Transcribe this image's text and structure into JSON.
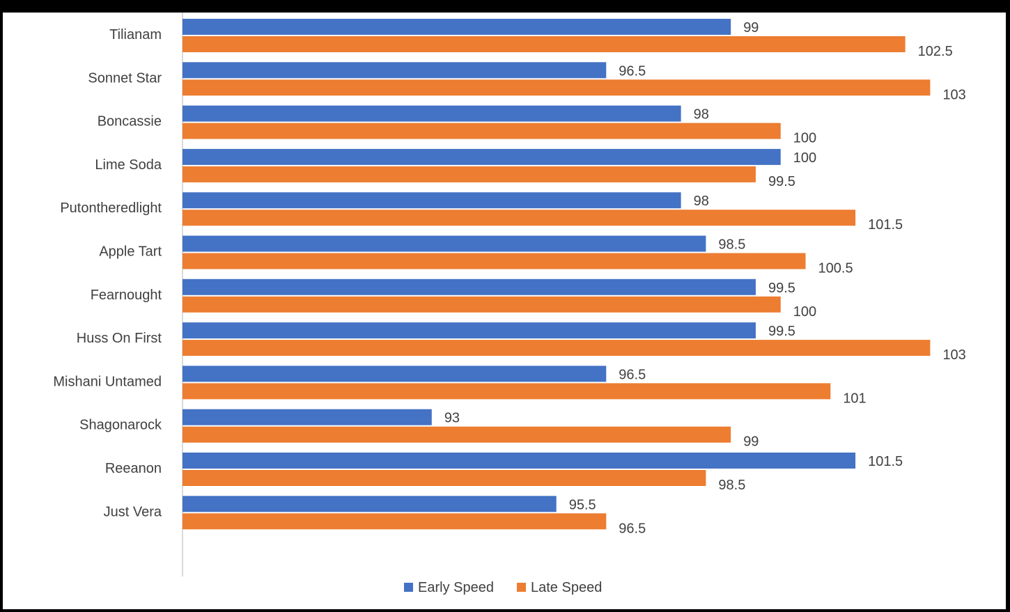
{
  "chart_data": {
    "type": "bar",
    "orientation": "horizontal",
    "title": "",
    "categories": [
      "Tilianam",
      "Sonnet Star",
      "Boncassie",
      "Lime Soda",
      "Putontheredlight",
      "Apple Tart",
      "Fearnought",
      "Huss On First",
      "Mishani Untamed",
      "Shagonarock",
      "Reeanon",
      "Just Vera"
    ],
    "series": [
      {
        "name": "Early Speed",
        "color": "#4472C4",
        "values": [
          99,
          96.5,
          98,
          100,
          98,
          98.5,
          99.5,
          99.5,
          96.5,
          93,
          101.5,
          95.5
        ]
      },
      {
        "name": "Late Speed",
        "color": "#ED7D31",
        "values": [
          102.5,
          103,
          100,
          99.5,
          101.5,
          100.5,
          100,
          103,
          101,
          99,
          98.5,
          96.5
        ]
      }
    ],
    "xlim": [
      88,
      104
    ],
    "grid": false,
    "legend_position": "bottom"
  }
}
